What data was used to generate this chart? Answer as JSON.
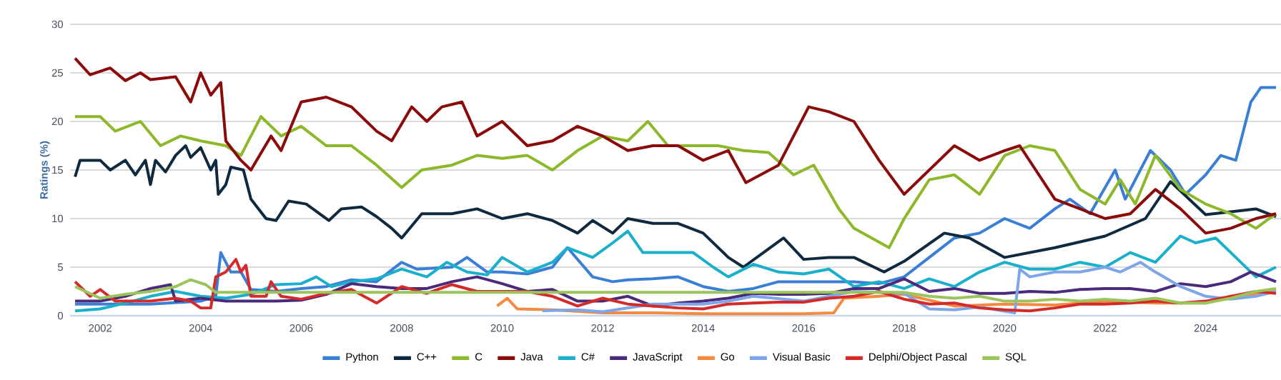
{
  "chart_data": {
    "type": "line",
    "ylabel": "Ratings (%)",
    "xlim": [
      2001.4,
      2025.5
    ],
    "xticks": [
      2002,
      2004,
      2006,
      2008,
      2010,
      2012,
      2014,
      2016,
      2018,
      2020,
      2022,
      2024
    ],
    "ylim": [
      0,
      30
    ],
    "yticks": [
      0,
      5,
      10,
      15,
      20,
      25,
      30
    ],
    "grid": "y",
    "legend": "bottom",
    "marker": "none",
    "line_style": "solid",
    "series": [
      {
        "name": "Python",
        "color": "#3a7fd5",
        "x": [
          2001.5,
          2003,
          2004.0,
          2004.3,
          2004.4,
          2004.6,
          2004.8,
          2005.0,
          2005.5,
          2006,
          2006.5,
          2007,
          2007.5,
          2008.0,
          2008.3,
          2009,
          2009.3,
          2009.7,
          2010.0,
          2010.5,
          2011.0,
          2011.3,
          2011.8,
          2012.2,
          2012.5,
          2013,
          2013.5,
          2014.0,
          2014.5,
          2015,
          2015.5,
          2016,
          2016.5,
          2017,
          2017.5,
          2018.0,
          2018.5,
          2019.0,
          2019.5,
          2020.0,
          2020.5,
          2021.0,
          2021.3,
          2021.7,
          2022.2,
          2022.4,
          2022.9,
          2023.3,
          2023.6,
          2024.0,
          2024.3,
          2024.6,
          2024.9,
          2025.1,
          2025.4
        ],
        "values": [
          1.2,
          1.2,
          1.5,
          2,
          6.5,
          4.5,
          4.5,
          2.7,
          2.5,
          2.8,
          3,
          3.7,
          3.5,
          5.5,
          4.8,
          5,
          6,
          4.5,
          4.5,
          4.3,
          5,
          7,
          4,
          3.5,
          3.7,
          3.8,
          4,
          3,
          2.5,
          2.8,
          3.5,
          3.5,
          3.5,
          3.5,
          3.3,
          4,
          6,
          8,
          8.5,
          10,
          9,
          11,
          12,
          10.5,
          15,
          12,
          17,
          15,
          12.5,
          14.5,
          16.5,
          16,
          22,
          23.5,
          23.5
        ]
      },
      {
        "name": "C++",
        "color": "#0f2a3f",
        "x": [
          2001.5,
          2001.6,
          2002.0,
          2002.2,
          2002.5,
          2002.7,
          2002.9,
          2003.0,
          2003.1,
          2003.3,
          2003.5,
          2003.7,
          2003.8,
          2004.0,
          2004.2,
          2004.3,
          2004.35,
          2004.5,
          2004.6,
          2004.85,
          2005.0,
          2005.3,
          2005.5,
          2005.75,
          2006.1,
          2006.55,
          2006.8,
          2007.2,
          2007.5,
          2007.8,
          2008.0,
          2008.4,
          2009.0,
          2009.5,
          2010.0,
          2010.5,
          2011.0,
          2011.5,
          2011.8,
          2012.2,
          2012.5,
          2013,
          2013.5,
          2014.0,
          2014.5,
          2014.8,
          2015.2,
          2015.6,
          2016.0,
          2016.5,
          2017,
          2017.6,
          2018.0,
          2018.8,
          2019.3,
          2020.0,
          2021.0,
          2022.0,
          2022.8,
          2023.3,
          2024.0,
          2025.0,
          2025.4
        ],
        "values": [
          14.3,
          16,
          16,
          15,
          16,
          14.5,
          16,
          13.5,
          16,
          14.8,
          16.5,
          17.5,
          16.3,
          17.3,
          15,
          16,
          12.5,
          13.5,
          15.3,
          15,
          12,
          10,
          9.8,
          11.8,
          11.5,
          9.8,
          11,
          11.2,
          10.2,
          9,
          8,
          10.5,
          10.5,
          11,
          10,
          10.5,
          9.8,
          8.5,
          9.8,
          8.5,
          10,
          9.5,
          9.5,
          8.5,
          6,
          5,
          6.5,
          8,
          5.8,
          6,
          6,
          4.5,
          5.6,
          8.5,
          8,
          6,
          7,
          8.2,
          10,
          13.8,
          10.4,
          11,
          10.2
        ]
      },
      {
        "name": "C",
        "color": "#8cb82a",
        "x": [
          2001.5,
          2002,
          2002.3,
          2002.8,
          2003.2,
          2003.6,
          2004.0,
          2004.5,
          2004.8,
          2005.2,
          2005.6,
          2006.0,
          2006.5,
          2007.0,
          2007.5,
          2008.0,
          2008.4,
          2009,
          2009.5,
          2010.0,
          2010.5,
          2011.0,
          2011.5,
          2012.0,
          2012.5,
          2012.9,
          2013.3,
          2013.8,
          2014.3,
          2014.8,
          2015.3,
          2015.8,
          2016.2,
          2016.7,
          2017.0,
          2017.7,
          2018.0,
          2018.5,
          2019.0,
          2019.5,
          2020.0,
          2020.5,
          2021.0,
          2021.5,
          2022.0,
          2022.3,
          2022.6,
          2023.0,
          2023.5,
          2024.0,
          2024.5,
          2025.0,
          2025.4
        ],
        "values": [
          20.5,
          20.5,
          19,
          20,
          17.5,
          18.5,
          18,
          17.5,
          16.5,
          20.5,
          18.5,
          19.5,
          17.5,
          17.5,
          15.5,
          13.2,
          15,
          15.5,
          16.5,
          16.2,
          16.5,
          15,
          17,
          18.5,
          18,
          20,
          17.5,
          17.5,
          17.5,
          17,
          16.8,
          14.5,
          15.5,
          11,
          9,
          7,
          10,
          14,
          14.5,
          12.5,
          16.5,
          17.5,
          17,
          13,
          11.5,
          14,
          11.5,
          16.5,
          13,
          11.5,
          10.5,
          9,
          10.5
        ]
      },
      {
        "name": "Java",
        "color": "#8b0a0a",
        "x": [
          2001.5,
          2001.8,
          2002.2,
          2002.5,
          2002.8,
          2003.0,
          2003.5,
          2003.8,
          2004.0,
          2004.2,
          2004.4,
          2004.5,
          2004.8,
          2005.0,
          2005.4,
          2005.6,
          2006.0,
          2006.5,
          2007.0,
          2007.5,
          2007.8,
          2008.2,
          2008.5,
          2008.8,
          2009.2,
          2009.5,
          2010.0,
          2010.5,
          2011.0,
          2011.5,
          2012.0,
          2012.5,
          2013.0,
          2013.5,
          2014.0,
          2014.5,
          2014.85,
          2015.5,
          2016.1,
          2016.5,
          2017.0,
          2017.5,
          2018.0,
          2018.5,
          2019.0,
          2019.5,
          2020.0,
          2020.3,
          2021.0,
          2021.5,
          2022.0,
          2022.5,
          2023.0,
          2023.5,
          2024.0,
          2024.5,
          2025.0,
          2025.4
        ],
        "values": [
          26.5,
          24.8,
          25.5,
          24.2,
          25,
          24.3,
          24.6,
          22,
          25,
          22.7,
          24,
          18,
          16,
          15,
          18.5,
          17,
          22,
          22.5,
          21.5,
          19,
          18,
          21.5,
          20,
          21.5,
          22,
          18.5,
          20,
          17.5,
          18,
          19.5,
          18.5,
          17,
          17.5,
          17.5,
          16,
          17,
          13.7,
          15.5,
          21.5,
          21,
          20,
          16,
          12.5,
          15,
          17.5,
          16,
          17,
          17.5,
          12,
          11,
          10,
          10.5,
          13,
          11,
          8.5,
          9,
          10,
          10.5
        ]
      },
      {
        "name": "C#",
        "color": "#1ab0cc",
        "x": [
          2001.5,
          2002,
          2002.5,
          2003,
          2003.5,
          2004,
          2004.5,
          2005,
          2005.5,
          2006,
          2006.3,
          2006.6,
          2007,
          2007.5,
          2008,
          2008.5,
          2008.9,
          2009.3,
          2009.7,
          2010,
          2010.5,
          2011,
          2011.3,
          2011.8,
          2012.2,
          2012.5,
          2012.8,
          2013.3,
          2013.8,
          2014.2,
          2014.5,
          2015,
          2015.5,
          2016,
          2016.5,
          2017,
          2017.5,
          2018,
          2018.5,
          2019,
          2019.5,
          2020.0,
          2020.5,
          2021,
          2021.5,
          2022,
          2022.5,
          2023.0,
          2023.5,
          2023.8,
          2024.2,
          2024.6,
          2025,
          2025.4
        ],
        "values": [
          0.5,
          0.7,
          1.3,
          2,
          2.5,
          2,
          1.8,
          2.2,
          3.2,
          3.3,
          4,
          3,
          3.5,
          3.8,
          4.8,
          4,
          5.5,
          4.5,
          4.2,
          6,
          4.5,
          5.5,
          7,
          6,
          7.5,
          8.7,
          6.5,
          6.5,
          6.5,
          5,
          4,
          5.3,
          4.5,
          4.3,
          4.8,
          3,
          3.5,
          2.8,
          3.8,
          3,
          4.5,
          5.5,
          4.8,
          4.8,
          5.5,
          5,
          6.5,
          5.5,
          8.2,
          7.5,
          8,
          6,
          4,
          5
        ]
      },
      {
        "name": "JavaScript",
        "color": "#4b2a7b",
        "x": [
          2001.5,
          2002,
          2002.5,
          2003,
          2003.4,
          2003.5,
          2004.0,
          2004.5,
          2005,
          2005.5,
          2006,
          2006.5,
          2007,
          2007.5,
          2008,
          2008.5,
          2009,
          2009.5,
          2010,
          2010.5,
          2011,
          2011.5,
          2012,
          2012.5,
          2013,
          2013.5,
          2014,
          2014.5,
          2015,
          2015.5,
          2016,
          2016.5,
          2017,
          2017.5,
          2018,
          2018.5,
          2019,
          2019.5,
          2020,
          2020.5,
          2021,
          2021.5,
          2022,
          2022.5,
          2023,
          2023.5,
          2024,
          2024.5,
          2024.9,
          2025.4
        ],
        "values": [
          1.5,
          1.5,
          2,
          2.8,
          3.2,
          1.5,
          1.8,
          1.5,
          1.5,
          1.5,
          1.6,
          2.2,
          3.3,
          3,
          2.8,
          2.8,
          3.5,
          4,
          3.3,
          2.5,
          2.7,
          1.5,
          1.5,
          2,
          1,
          1.3,
          1.5,
          1.8,
          2.3,
          2.2,
          2.2,
          2.3,
          2.8,
          2.8,
          3.8,
          2.5,
          2.8,
          2.3,
          2.3,
          2.5,
          2.4,
          2.7,
          2.8,
          2.8,
          2.5,
          3.3,
          3,
          3.5,
          4.5,
          3.5
        ]
      },
      {
        "name": "Go",
        "color": "#f5893f",
        "x": [
          2009.9,
          2010.1,
          2010.3,
          2011,
          2012,
          2013,
          2014,
          2015,
          2016,
          2016.6,
          2016.8,
          2017.5,
          2018,
          2019,
          2020,
          2021,
          2022,
          2023,
          2024,
          2024.5,
          2025,
          2025.4
        ],
        "values": [
          1,
          1.8,
          0.7,
          0.6,
          0.3,
          0.3,
          0.2,
          0.2,
          0.2,
          0.3,
          1.8,
          2,
          2.2,
          1,
          1.2,
          1.1,
          1.5,
          1.3,
          1.3,
          2,
          2.2,
          2.5
        ]
      },
      {
        "name": "Visual Basic",
        "color": "#7da5e8",
        "x": [
          2010.8,
          2011.5,
          2012,
          2013,
          2014,
          2014.5,
          2015,
          2016,
          2017,
          2018,
          2018.5,
          2019,
          2019.5,
          2020.2,
          2020.3,
          2020.5,
          2021,
          2021.5,
          2022,
          2022.3,
          2022.7,
          2023,
          2023.5,
          2024,
          2024.5,
          2025,
          2025.4
        ],
        "values": [
          0.5,
          0.6,
          0.4,
          1.2,
          1.2,
          1.5,
          2,
          1.5,
          2.5,
          2.3,
          0.7,
          0.6,
          0.9,
          0.3,
          4.8,
          4,
          4.5,
          4.5,
          5,
          4.5,
          5.5,
          4.5,
          3,
          2,
          1.7,
          2,
          2.5
        ]
      },
      {
        "name": "Delphi/Object Pascal",
        "color": "#d42a2a",
        "x": [
          2001.5,
          2001.8,
          2002,
          2002.3,
          2003,
          2003.5,
          2003.8,
          2004,
          2004.2,
          2004.3,
          2004.5,
          2004.7,
          2004.8,
          2004.9,
          2005.0,
          2005.3,
          2005.4,
          2005.6,
          2006,
          2006.5,
          2007,
          2007.5,
          2008,
          2008.5,
          2009,
          2009.5,
          2010,
          2010.5,
          2011,
          2011.5,
          2012,
          2012.5,
          2013,
          2013.5,
          2014,
          2014.5,
          2015,
          2015.5,
          2016,
          2016.5,
          2017,
          2017.5,
          2018,
          2018.5,
          2019,
          2019.5,
          2020,
          2020.5,
          2021,
          2021.5,
          2022,
          2022.5,
          2023,
          2023.5,
          2024,
          2024.5,
          2025,
          2025.4
        ],
        "values": [
          3.5,
          2,
          2.7,
          1.5,
          1.5,
          1.8,
          1.5,
          0.8,
          0.8,
          4,
          4.5,
          5.8,
          4.5,
          5.2,
          2,
          2,
          3.5,
          2,
          1.7,
          2.3,
          2.7,
          1.3,
          3,
          2.3,
          3.2,
          2.5,
          2.5,
          2.5,
          2,
          1,
          1.8,
          1.2,
          1,
          0.8,
          0.7,
          1.2,
          1.3,
          1.4,
          1.4,
          1.8,
          2,
          2.5,
          1.7,
          1.2,
          1.3,
          0.8,
          0.6,
          0.5,
          0.8,
          1.2,
          1.2,
          1.3,
          1.5,
          1.3,
          1.5,
          2,
          2.5,
          2.3
        ]
      },
      {
        "name": "SQL",
        "color": "#9bc45c",
        "x": [
          2001.5,
          2002,
          2002.5,
          2003,
          2003.5,
          2003.8,
          2004.1,
          2004.3,
          2018.0,
          2018.5,
          2019,
          2019.5,
          2020,
          2020.5,
          2021,
          2021.5,
          2022,
          2022.5,
          2023,
          2023.5,
          2024,
          2024.5,
          2025,
          2025.4
        ],
        "values": [
          3,
          1.8,
          2.2,
          2.5,
          3,
          3.7,
          3.2,
          2.4,
          2.4,
          2,
          1.8,
          2,
          1.5,
          1.5,
          1.7,
          1.5,
          1.7,
          1.5,
          1.8,
          1.3,
          1.3,
          1.8,
          2.5,
          2.8
        ]
      }
    ]
  }
}
